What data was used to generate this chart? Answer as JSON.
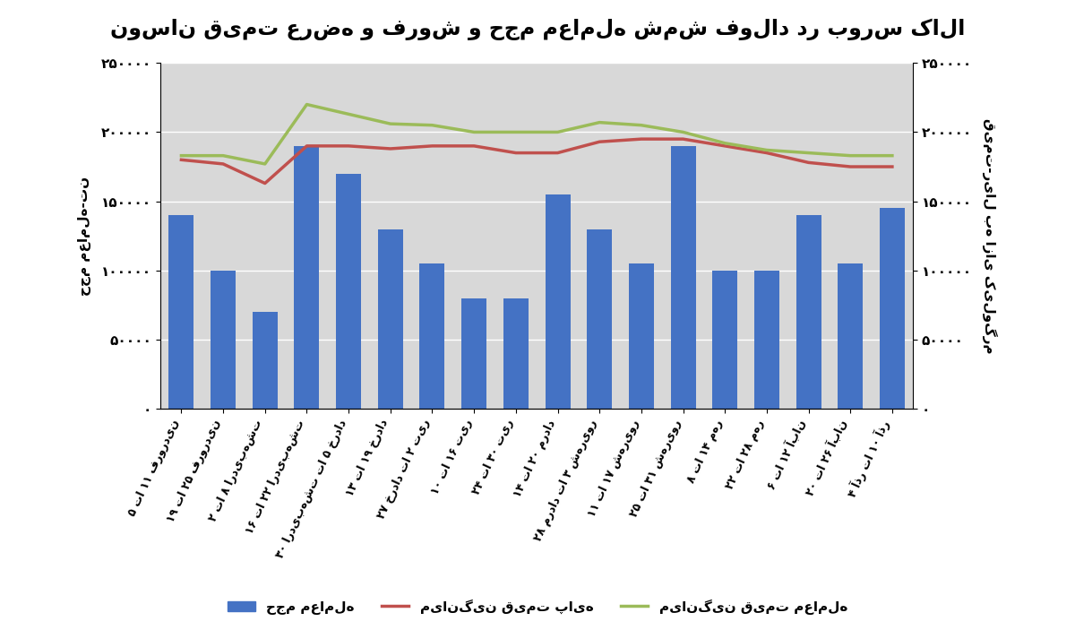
{
  "title": "نوسان قیمت عرضه و فروش و حجم معامله شمش فولاد در بورس کالا",
  "ylabel_left": "حجم معامله-تن",
  "ylabel_right": "قیمت-ریال به ازای کیلوگرم",
  "categories": [
    "۵ تا ۱۱ فروردین",
    "۱۹ تا ۲۵ فروردین",
    "۲ تا ۸ اردیبهشت",
    "۱۶ تا ۲۲ اردیبهشت",
    "۳۰ اردیبهشت تا ۵ خرداد",
    "۱۳ تا ۱۹ خرداد",
    "۲۷ خرداد تا ۲ تیر",
    "۱۰ تا ۱۶ تیر",
    "۲۴ تا ۳۰ تیر",
    "۱۴ تا ۲۰ مرداد",
    "۲۸ مرداد تا ۳ شهریور",
    "۱۱ تا ۱۷ شهریور",
    "۲۵ تا ۳۱ شهریور",
    "۸ تا ۱۴ مهر",
    "۲۲ تا ۲۸ مهر",
    "۶ تا ۱۲ آبان",
    "۲۰ تا ۲۶ آبان",
    "۴ آذر تا ۱۰ آذر"
  ],
  "bar_values": [
    140000,
    100000,
    70000,
    190000,
    170000,
    130000,
    105000,
    80000,
    80000,
    155000,
    130000,
    105000,
    190000,
    100000,
    100000,
    140000,
    105000,
    145000
  ],
  "price_base": [
    180000,
    177000,
    163000,
    190000,
    190000,
    188000,
    190000,
    190000,
    185000,
    185000,
    193000,
    195000,
    195000,
    190000,
    185000,
    178000,
    175000,
    175000
  ],
  "price_deal": [
    183000,
    183000,
    177000,
    220000,
    213000,
    206000,
    205000,
    200000,
    200000,
    200000,
    207000,
    205000,
    200000,
    192000,
    187000,
    185000,
    183000,
    183000
  ],
  "bar_color": "#4472C4",
  "line_base_color": "#C0504D",
  "line_deal_color": "#9BBB59",
  "bg_color": "#FFFFFF",
  "plot_bg_color": "#D8D8D8",
  "ylim_left": [
    0,
    250000
  ],
  "ylim_right": [
    0,
    250000
  ],
  "yticks": [
    0,
    50000,
    100000,
    150000,
    200000,
    250000
  ],
  "ytick_labels": [
    "۰",
    "۵۰۰۰۰",
    "۱۰۰۰۰۰",
    "۱۵۰۰۰۰",
    "۲۰۰۰۰۰",
    "۲۵۰۰۰۰"
  ],
  "legend_labels": [
    "حجم معامله",
    "میانگین قیمت پایه",
    "میانگین قیمت معامله"
  ]
}
